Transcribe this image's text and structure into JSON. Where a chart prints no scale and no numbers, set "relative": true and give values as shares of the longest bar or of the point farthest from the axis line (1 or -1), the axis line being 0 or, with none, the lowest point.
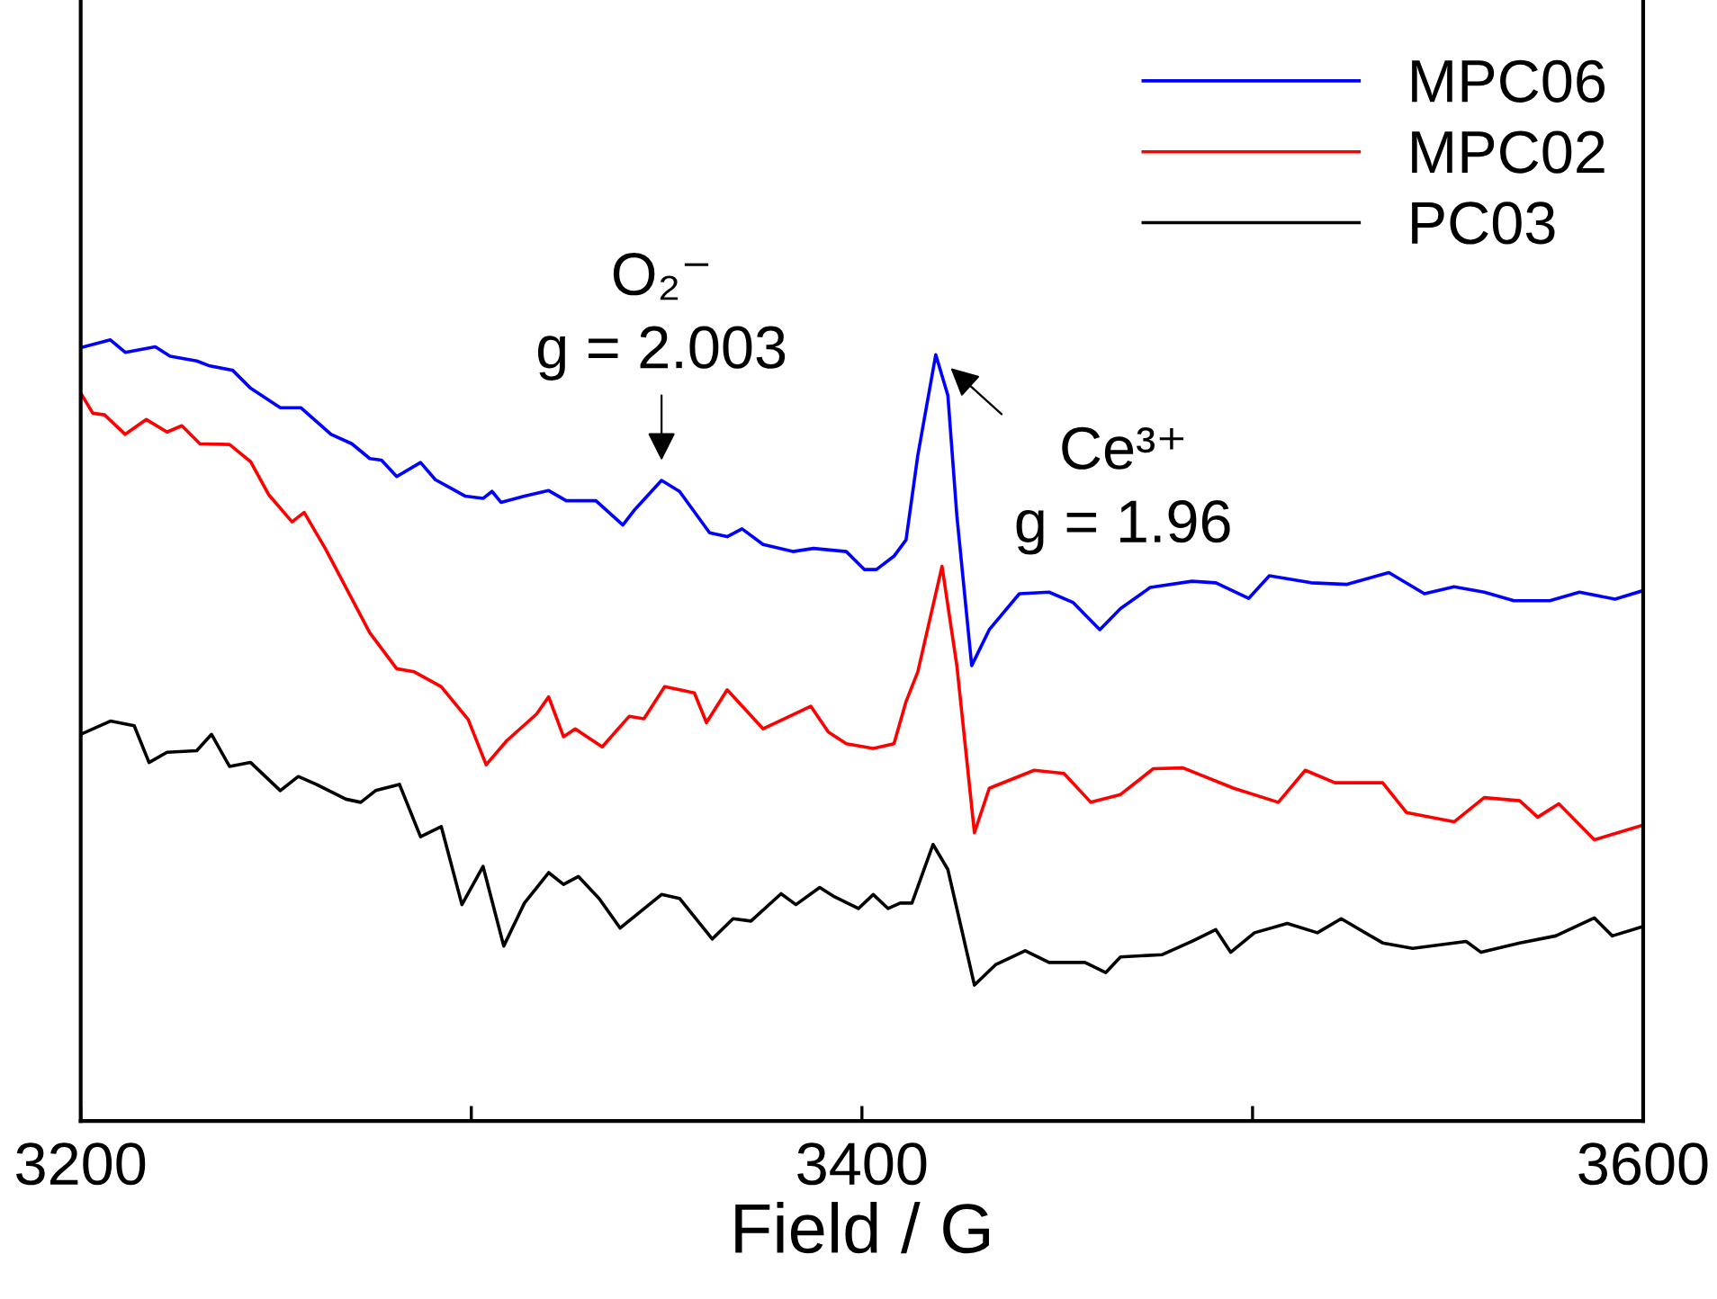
{
  "chart_data": {
    "type": "line",
    "xlabel": "Field / G",
    "relative": true,
    "xlim": [
      3200,
      3600
    ],
    "xticks": [
      3200,
      {
        "value": 3300,
        "label": null
      },
      3400,
      {
        "value": 3500,
        "label": null
      },
      3600
    ],
    "legend": "top right",
    "grid": false,
    "series": [
      {
        "name": "MPC06",
        "color": "#0000ff",
        "x": [
          3200,
          3207.6,
          3211.4,
          3219.1,
          3222.9,
          3229.7,
          3232.8,
          3238.9,
          3243.5,
          3251.1,
          3256.4,
          3264.1,
          3269.4,
          3274.0,
          3277.0,
          3280.9,
          3287.0,
          3290.8,
          3298.4,
          3303.0,
          3305.3,
          3307.6,
          3313.6,
          3319.8,
          3324.3,
          3331.9,
          3338.8,
          3341.9,
          3348.7,
          3353.3,
          3361.0,
          3365.5,
          3369.3,
          3374.7,
          3382.3,
          3387.6,
          3396.0,
          3400.6,
          3403.7,
          3408.2,
          3411.3,
          3414.3,
          3418.9,
          3422.0,
          3424.3,
          3428.1,
          3432.6,
          3440.3,
          3447.9,
          3454.0,
          3460.9,
          3466.2,
          3473.8,
          3484.5,
          3490.6,
          3499.0,
          3504.3,
          3515.0,
          3524.2,
          3534.9,
          3544.0,
          3551.6,
          3559.3,
          3566.9,
          3576.1,
          3583.7,
          3592.8,
          3600
        ],
        "values": [
          0.99,
          1.0,
          0.984,
          0.991,
          0.979,
          0.973,
          0.967,
          0.961,
          0.938,
          0.913,
          0.913,
          0.879,
          0.867,
          0.848,
          0.846,
          0.825,
          0.843,
          0.821,
          0.8,
          0.797,
          0.806,
          0.792,
          0.8,
          0.807,
          0.794,
          0.794,
          0.763,
          0.783,
          0.82,
          0.806,
          0.753,
          0.748,
          0.758,
          0.738,
          0.729,
          0.733,
          0.729,
          0.706,
          0.706,
          0.723,
          0.744,
          0.852,
          0.981,
          0.929,
          0.775,
          0.583,
          0.629,
          0.675,
          0.677,
          0.664,
          0.629,
          0.656,
          0.683,
          0.691,
          0.689,
          0.669,
          0.698,
          0.689,
          0.687,
          0.702,
          0.675,
          0.684,
          0.677,
          0.666,
          0.666,
          0.677,
          0.668,
          0.679
        ]
      },
      {
        "name": "MPC02",
        "color": "#ff0000",
        "x": [
          3200,
          3203.1,
          3206.1,
          3211.4,
          3216.8,
          3222.1,
          3225.9,
          3230.5,
          3238.1,
          3243.5,
          3248.1,
          3254.1,
          3257.2,
          3262.6,
          3267.9,
          3274.0,
          3280.9,
          3285.4,
          3292.3,
          3299.2,
          3303.8,
          3309.1,
          3316.7,
          3319.8,
          3323.6,
          3326.6,
          3333.5,
          3340.4,
          3344.2,
          3349.5,
          3357.1,
          3360.2,
          3365.5,
          3374.7,
          3386.9,
          3391.4,
          3396.0,
          3402.9,
          3408.2,
          3411.3,
          3414.3,
          3420.5,
          3424.3,
          3428.8,
          3432.6,
          3444.1,
          3451.7,
          3458.6,
          3466.2,
          3474.6,
          3482.2,
          3495.2,
          3506.6,
          3513.5,
          3521.1,
          3533.3,
          3539.4,
          3551.6,
          3559.3,
          3568.4,
          3573.0,
          3578.4,
          3587.5,
          3600
        ],
        "values": [
          0.932,
          0.906,
          0.904,
          0.879,
          0.898,
          0.882,
          0.89,
          0.867,
          0.866,
          0.844,
          0.802,
          0.767,
          0.779,
          0.733,
          0.683,
          0.625,
          0.579,
          0.575,
          0.556,
          0.514,
          0.456,
          0.487,
          0.521,
          0.543,
          0.492,
          0.502,
          0.479,
          0.518,
          0.515,
          0.556,
          0.548,
          0.51,
          0.552,
          0.502,
          0.531,
          0.498,
          0.483,
          0.477,
          0.483,
          0.537,
          0.575,
          0.71,
          0.583,
          0.369,
          0.426,
          0.449,
          0.445,
          0.408,
          0.418,
          0.451,
          0.452,
          0.426,
          0.408,
          0.449,
          0.433,
          0.433,
          0.395,
          0.383,
          0.414,
          0.41,
          0.389,
          0.406,
          0.36,
          0.379
        ]
      },
      {
        "name": "PC03",
        "color": "#000000",
        "x": [
          3200,
          3207.6,
          3213.7,
          3217.5,
          3222.1,
          3229.7,
          3233.5,
          3238.1,
          3243.5,
          3251.1,
          3255.7,
          3260.3,
          3267.9,
          3271.7,
          3275.5,
          3281.6,
          3287.0,
          3292.3,
          3297.6,
          3303.0,
          3308.3,
          3313.6,
          3319.8,
          3323.6,
          3327.4,
          3332.7,
          3338.1,
          3348.7,
          3353.3,
          3361.7,
          3367.0,
          3371.6,
          3379.3,
          3383.1,
          3389.2,
          3393.0,
          3399.1,
          3402.9,
          3406.7,
          3409.8,
          3412.8,
          3418.2,
          3422.0,
          3428.8,
          3434.2,
          3441.8,
          3447.9,
          3457.1,
          3462.4,
          3466.2,
          3476.9,
          3484.5,
          3490.6,
          3494.4,
          3500.5,
          3508.9,
          3516.6,
          3522.7,
          3533.3,
          3541.0,
          3554.7,
          3558.5,
          3568.4,
          3577.6,
          3587.5,
          3592.1,
          3600
        ],
        "values": [
          0.495,
          0.512,
          0.506,
          0.459,
          0.472,
          0.474,
          0.495,
          0.454,
          0.459,
          0.423,
          0.441,
          0.431,
          0.412,
          0.408,
          0.423,
          0.431,
          0.364,
          0.377,
          0.277,
          0.326,
          0.224,
          0.279,
          0.318,
          0.303,
          0.313,
          0.285,
          0.247,
          0.29,
          0.285,
          0.233,
          0.259,
          0.256,
          0.291,
          0.277,
          0.299,
          0.287,
          0.272,
          0.29,
          0.272,
          0.279,
          0.279,
          0.354,
          0.322,
          0.174,
          0.2,
          0.218,
          0.203,
          0.203,
          0.19,
          0.21,
          0.213,
          0.23,
          0.245,
          0.216,
          0.241,
          0.253,
          0.241,
          0.259,
          0.228,
          0.221,
          0.23,
          0.216,
          0.228,
          0.237,
          0.26,
          0.237,
          0.249
        ]
      }
    ],
    "annotations": [
      {
        "text": "O₂⁻\ng = 2.003",
        "x": 3348.7,
        "y": 0.82
      },
      {
        "text": "Ce³⁺\ng = 1.96",
        "x": 3418.9,
        "y": 0.981
      }
    ]
  }
}
